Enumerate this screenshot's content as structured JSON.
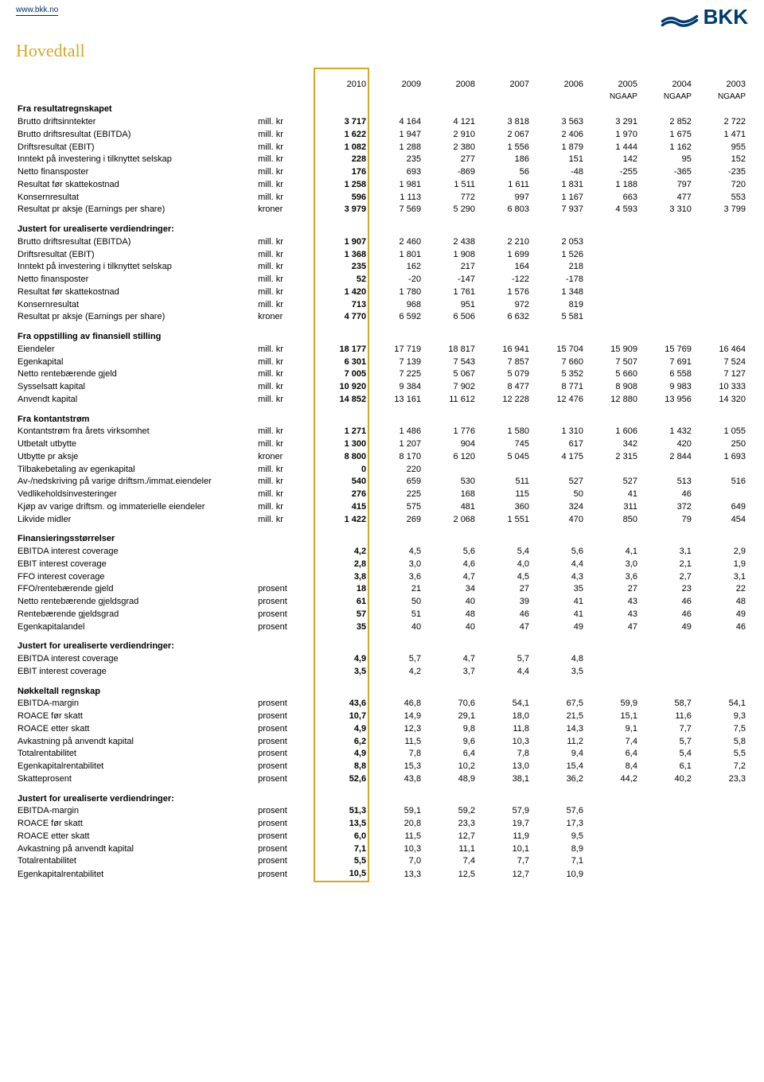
{
  "header": {
    "url": "www.bkk.no",
    "logo_text": "BKK"
  },
  "title": "Hovedtall",
  "colors": {
    "accent": "#d4a82a",
    "logo": "#003a6e",
    "text": "#000000",
    "background": "#ffffff"
  },
  "years": [
    "2010",
    "2009",
    "2008",
    "2007",
    "2006",
    "2005",
    "2004",
    "2003"
  ],
  "ngap_labels": [
    "",
    "",
    "",
    "",
    "",
    "NGAAP",
    "NGAAP",
    "NGAAP"
  ],
  "sections": [
    {
      "heading": "Fra resultatregnskapet",
      "rows": [
        {
          "label": "Brutto driftsinntekter",
          "unit": "mill. kr",
          "vals": [
            "3 717",
            "4 164",
            "4 121",
            "3 818",
            "3 563",
            "3 291",
            "2 852",
            "2 722"
          ]
        },
        {
          "label": "Brutto driftsresultat (EBITDA)",
          "unit": "mill. kr",
          "vals": [
            "1 622",
            "1 947",
            "2 910",
            "2 067",
            "2 406",
            "1 970",
            "1 675",
            "1 471"
          ]
        },
        {
          "label": "Driftsresultat (EBIT)",
          "unit": "mill. kr",
          "vals": [
            "1 082",
            "1 288",
            "2 380",
            "1 556",
            "1 879",
            "1 444",
            "1 162",
            "955"
          ]
        },
        {
          "label": "Inntekt på investering i tilknyttet selskap",
          "unit": "mill. kr",
          "vals": [
            "228",
            "235",
            "277",
            "186",
            "151",
            "142",
            "95",
            "152"
          ]
        },
        {
          "label": "Netto finansposter",
          "unit": "mill. kr",
          "vals": [
            "176",
            "693",
            "-869",
            "56",
            "-48",
            "-255",
            "-365",
            "-235"
          ]
        },
        {
          "label": "Resultat før skattekostnad",
          "unit": "mill. kr",
          "vals": [
            "1 258",
            "1 981",
            "1 511",
            "1 611",
            "1 831",
            "1 188",
            "797",
            "720"
          ]
        },
        {
          "label": "Konsernresultat",
          "unit": "mill. kr",
          "vals": [
            "596",
            "1 113",
            "772",
            "997",
            "1 167",
            "663",
            "477",
            "553"
          ]
        },
        {
          "label": "Resultat pr aksje (Earnings per share)",
          "unit": "kroner",
          "vals": [
            "3 979",
            "7 569",
            "5 290",
            "6 803",
            "7 937",
            "4 593",
            "3 310",
            "3 799"
          ]
        }
      ]
    },
    {
      "heading": "Justert for urealiserte verdiendringer:",
      "rows": [
        {
          "label": "Brutto driftsresultat (EBITDA)",
          "unit": "mill. kr",
          "vals": [
            "1 907",
            "2 460",
            "2 438",
            "2 210",
            "2 053",
            "",
            "",
            ""
          ]
        },
        {
          "label": "Driftsresultat (EBIT)",
          "unit": "mill. kr",
          "vals": [
            "1 368",
            "1 801",
            "1 908",
            "1 699",
            "1 526",
            "",
            "",
            ""
          ]
        },
        {
          "label": "Inntekt på investering i tilknyttet selskap",
          "unit": "mill. kr",
          "vals": [
            "235",
            "162",
            "217",
            "164",
            "218",
            "",
            "",
            ""
          ]
        },
        {
          "label": "Netto finansposter",
          "unit": "mill. kr",
          "vals": [
            "52",
            "-20",
            "-147",
            "-122",
            "-178",
            "",
            "",
            ""
          ]
        },
        {
          "label": "Resultat før skattekostnad",
          "unit": "mill. kr",
          "vals": [
            "1 420",
            "1 780",
            "1 761",
            "1 576",
            "1 348",
            "",
            "",
            ""
          ]
        },
        {
          "label": "Konsernresultat",
          "unit": "mill. kr",
          "vals": [
            "713",
            "968",
            "951",
            "972",
            "819",
            "",
            "",
            ""
          ]
        },
        {
          "label": "Resultat pr aksje (Earnings per share)",
          "unit": "kroner",
          "vals": [
            "4 770",
            "6 592",
            "6 506",
            "6 632",
            "5 581",
            "",
            "",
            ""
          ]
        }
      ]
    },
    {
      "heading": "Fra oppstilling av finansiell stilling",
      "rows": [
        {
          "label": "Eiendeler",
          "unit": "mill. kr",
          "vals": [
            "18 177",
            "17 719",
            "18 817",
            "16 941",
            "15 704",
            "15 909",
            "15 769",
            "16 464"
          ]
        },
        {
          "label": "Egenkapital",
          "unit": "mill. kr",
          "vals": [
            "6 301",
            "7 139",
            "7 543",
            "7 857",
            "7 660",
            "7 507",
            "7 691",
            "7 524"
          ]
        },
        {
          "label": "Netto rentebærende gjeld",
          "unit": "mill. kr",
          "vals": [
            "7 005",
            "7 225",
            "5 067",
            "5 079",
            "5 352",
            "5 660",
            "6 558",
            "7 127"
          ]
        },
        {
          "label": "Sysselsatt kapital",
          "unit": "mill. kr",
          "vals": [
            "10 920",
            "9 384",
            "7 902",
            "8 477",
            "8 771",
            "8 908",
            "9 983",
            "10 333"
          ]
        },
        {
          "label": "Anvendt kapital",
          "unit": "mill. kr",
          "vals": [
            "14 852",
            "13 161",
            "11 612",
            "12 228",
            "12 476",
            "12 880",
            "13 956",
            "14 320"
          ]
        }
      ]
    },
    {
      "heading": "Fra kontantstrøm",
      "rows": [
        {
          "label": "Kontantstrøm fra årets virksomhet",
          "unit": "mill. kr",
          "vals": [
            "1 271",
            "1 486",
            "1 776",
            "1 580",
            "1 310",
            "1 606",
            "1 432",
            "1 055"
          ]
        },
        {
          "label": "Utbetalt utbytte",
          "unit": "mill. kr",
          "vals": [
            "1 300",
            "1 207",
            "904",
            "745",
            "617",
            "342",
            "420",
            "250"
          ]
        },
        {
          "label": "Utbytte pr aksje",
          "unit": "kroner",
          "vals": [
            "8 800",
            "8 170",
            "6 120",
            "5 045",
            "4 175",
            "2 315",
            "2 844",
            "1 693"
          ]
        },
        {
          "label": "Tilbakebetaling av egenkapital",
          "unit": "mill. kr",
          "vals": [
            "0",
            "220",
            "",
            "",
            "",
            "",
            "",
            ""
          ]
        },
        {
          "label": "Av-/nedskriving på varige driftsm./immat.eiendeler",
          "unit": "mill. kr",
          "vals": [
            "540",
            "659",
            "530",
            "511",
            "527",
            "527",
            "513",
            "516"
          ]
        },
        {
          "label": "Vedlikeholdsinvesteringer",
          "unit": "mill. kr",
          "vals": [
            "276",
            "225",
            "168",
            "115",
            "50",
            "41",
            "46",
            ""
          ]
        },
        {
          "label": "Kjøp av varige driftsm. og immaterielle eiendeler",
          "unit": "mill. kr",
          "vals": [
            "415",
            "575",
            "481",
            "360",
            "324",
            "311",
            "372",
            "649"
          ]
        },
        {
          "label": "Likvide midler",
          "unit": "mill. kr",
          "vals": [
            "1 422",
            "269",
            "2 068",
            "1 551",
            "470",
            "850",
            "79",
            "454"
          ]
        }
      ]
    },
    {
      "heading": "Finansieringsstørrelser",
      "rows": [
        {
          "label": "EBITDA interest coverage",
          "unit": "",
          "vals": [
            "4,2",
            "4,5",
            "5,6",
            "5,4",
            "5,6",
            "4,1",
            "3,1",
            "2,9"
          ]
        },
        {
          "label": "EBIT interest coverage",
          "unit": "",
          "vals": [
            "2,8",
            "3,0",
            "4,6",
            "4,0",
            "4,4",
            "3,0",
            "2,1",
            "1,9"
          ]
        },
        {
          "label": "FFO interest coverage",
          "unit": "",
          "vals": [
            "3,8",
            "3,6",
            "4,7",
            "4,5",
            "4,3",
            "3,6",
            "2,7",
            "3,1"
          ]
        },
        {
          "label": "FFO/rentebærende gjeld",
          "unit": "prosent",
          "vals": [
            "18",
            "21",
            "34",
            "27",
            "35",
            "27",
            "23",
            "22"
          ]
        },
        {
          "label": "Netto rentebærende gjeldsgrad",
          "unit": "prosent",
          "vals": [
            "61",
            "50",
            "40",
            "39",
            "41",
            "43",
            "46",
            "48"
          ]
        },
        {
          "label": "Rentebærende gjeldsgrad",
          "unit": "prosent",
          "vals": [
            "57",
            "51",
            "48",
            "46",
            "41",
            "43",
            "46",
            "49"
          ]
        },
        {
          "label": "Egenkapitalandel",
          "unit": "prosent",
          "vals": [
            "35",
            "40",
            "40",
            "47",
            "49",
            "47",
            "49",
            "46"
          ]
        }
      ]
    },
    {
      "heading": "Justert for urealiserte verdiendringer:",
      "rows": [
        {
          "label": "EBITDA interest coverage",
          "unit": "",
          "vals": [
            "4,9",
            "5,7",
            "4,7",
            "5,7",
            "4,8",
            "",
            "",
            ""
          ]
        },
        {
          "label": "EBIT interest coverage",
          "unit": "",
          "vals": [
            "3,5",
            "4,2",
            "3,7",
            "4,4",
            "3,5",
            "",
            "",
            ""
          ]
        }
      ]
    },
    {
      "heading": "Nøkkeltall regnskap",
      "rows": [
        {
          "label": "EBITDA-margin",
          "unit": "prosent",
          "vals": [
            "43,6",
            "46,8",
            "70,6",
            "54,1",
            "67,5",
            "59,9",
            "58,7",
            "54,1"
          ]
        },
        {
          "label": "ROACE før skatt",
          "unit": "prosent",
          "vals": [
            "10,7",
            "14,9",
            "29,1",
            "18,0",
            "21,5",
            "15,1",
            "11,6",
            "9,3"
          ]
        },
        {
          "label": "ROACE etter skatt",
          "unit": "prosent",
          "vals": [
            "4,9",
            "12,3",
            "9,8",
            "11,8",
            "14,3",
            "9,1",
            "7,7",
            "7,5"
          ]
        },
        {
          "label": "Avkastning på anvendt kapital",
          "unit": "prosent",
          "vals": [
            "6,2",
            "11,5",
            "9,6",
            "10,3",
            "11,2",
            "7,4",
            "5,7",
            "5,8"
          ]
        },
        {
          "label": "Totalrentabilitet",
          "unit": "prosent",
          "vals": [
            "4,9",
            "7,8",
            "6,4",
            "7,8",
            "9,4",
            "6,4",
            "5,4",
            "5,5"
          ]
        },
        {
          "label": "Egenkapitalrentabilitet",
          "unit": "prosent",
          "vals": [
            "8,8",
            "15,3",
            "10,2",
            "13,0",
            "15,4",
            "8,4",
            "6,1",
            "7,2"
          ]
        },
        {
          "label": "Skatteprosent",
          "unit": "prosent",
          "vals": [
            "52,6",
            "43,8",
            "48,9",
            "38,1",
            "36,2",
            "44,2",
            "40,2",
            "23,3"
          ]
        }
      ]
    },
    {
      "heading": "Justert for urealiserte verdiendringer:",
      "rows": [
        {
          "label": "EBITDA-margin",
          "unit": "prosent",
          "vals": [
            "51,3",
            "59,1",
            "59,2",
            "57,9",
            "57,6",
            "",
            "",
            ""
          ]
        },
        {
          "label": "ROACE før skatt",
          "unit": "prosent",
          "vals": [
            "13,5",
            "20,8",
            "23,3",
            "19,7",
            "17,3",
            "",
            "",
            ""
          ]
        },
        {
          "label": "ROACE etter skatt",
          "unit": "prosent",
          "vals": [
            "6,0",
            "11,5",
            "12,7",
            "11,9",
            "9,5",
            "",
            "",
            ""
          ]
        },
        {
          "label": "Avkastning på anvendt kapital",
          "unit": "prosent",
          "vals": [
            "7,1",
            "10,3",
            "11,1",
            "10,1",
            "8,9",
            "",
            "",
            ""
          ]
        },
        {
          "label": "Totalrentabilitet",
          "unit": "prosent",
          "vals": [
            "5,5",
            "7,0",
            "7,4",
            "7,7",
            "7,1",
            "",
            "",
            ""
          ]
        },
        {
          "label": "Egenkapitalrentabilitet",
          "unit": "prosent",
          "vals": [
            "10,5",
            "13,3",
            "12,5",
            "12,7",
            "10,9",
            "",
            "",
            ""
          ]
        }
      ]
    }
  ]
}
